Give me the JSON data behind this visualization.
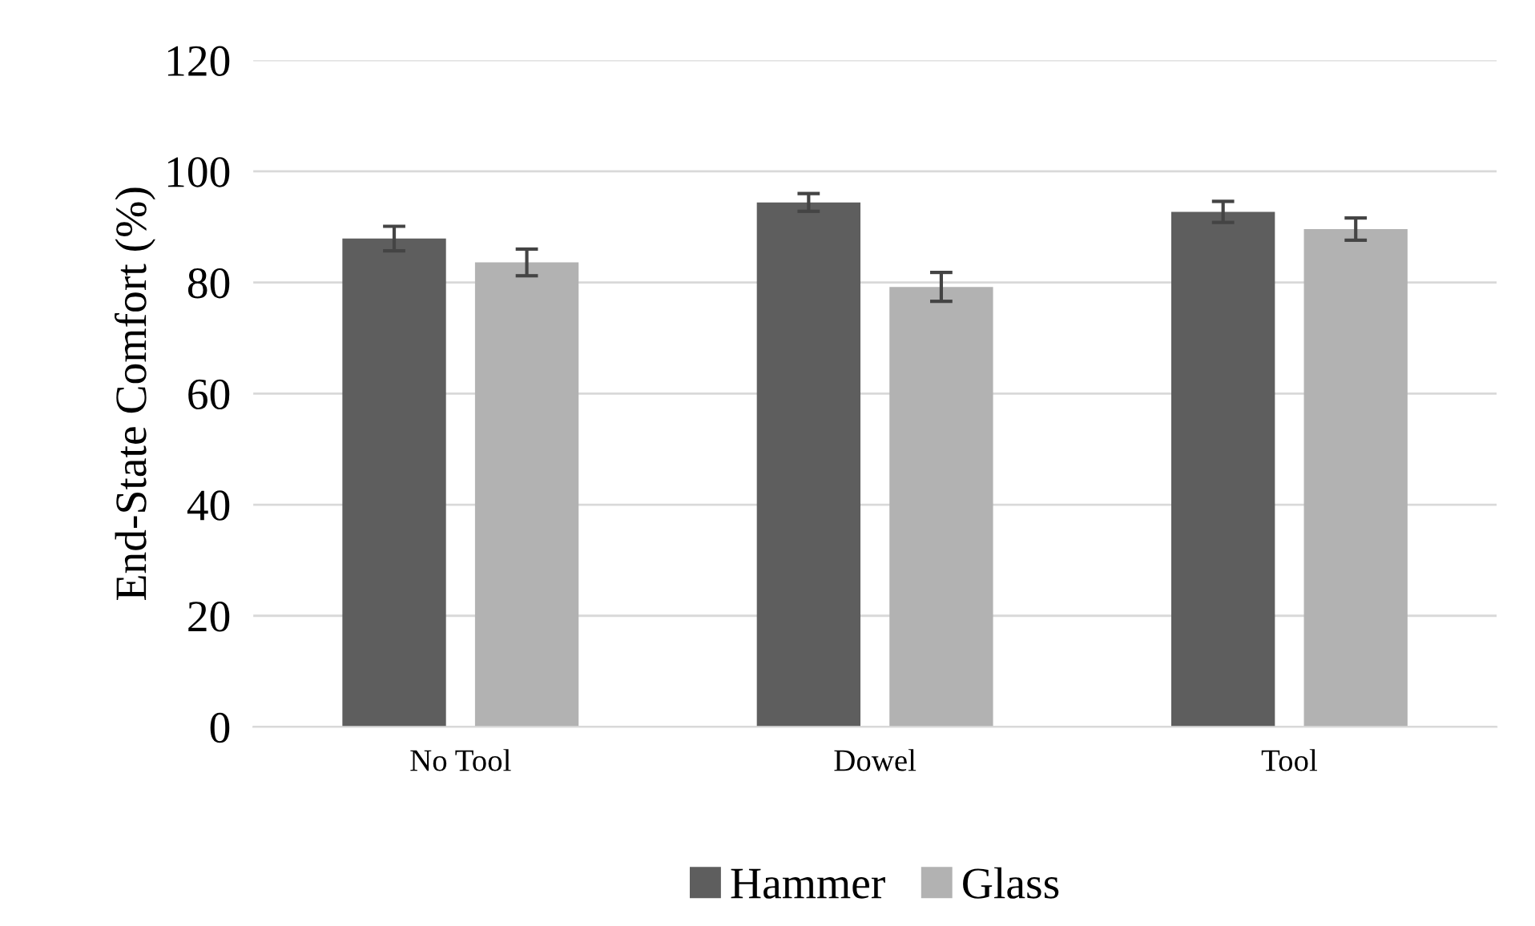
{
  "chart_data": {
    "type": "bar",
    "ylabel": "End-State Comfort (%)",
    "categories": [
      "No Tool",
      "Dowel",
      "Tool"
    ],
    "series": [
      {
        "name": "Hammer",
        "color": "#5e5e5e",
        "values": [
          87.9,
          94.4,
          92.7
        ],
        "errors": [
          2.2,
          1.6,
          1.9
        ]
      },
      {
        "name": "Glass",
        "color": "#b2b2b2",
        "values": [
          83.6,
          79.2,
          89.6
        ],
        "errors": [
          2.4,
          2.6,
          2.0
        ]
      }
    ],
    "ylim": [
      0,
      120
    ],
    "yticks": [
      0,
      20,
      40,
      60,
      80,
      100,
      120
    ],
    "grid": "y",
    "legend": "bottom"
  }
}
